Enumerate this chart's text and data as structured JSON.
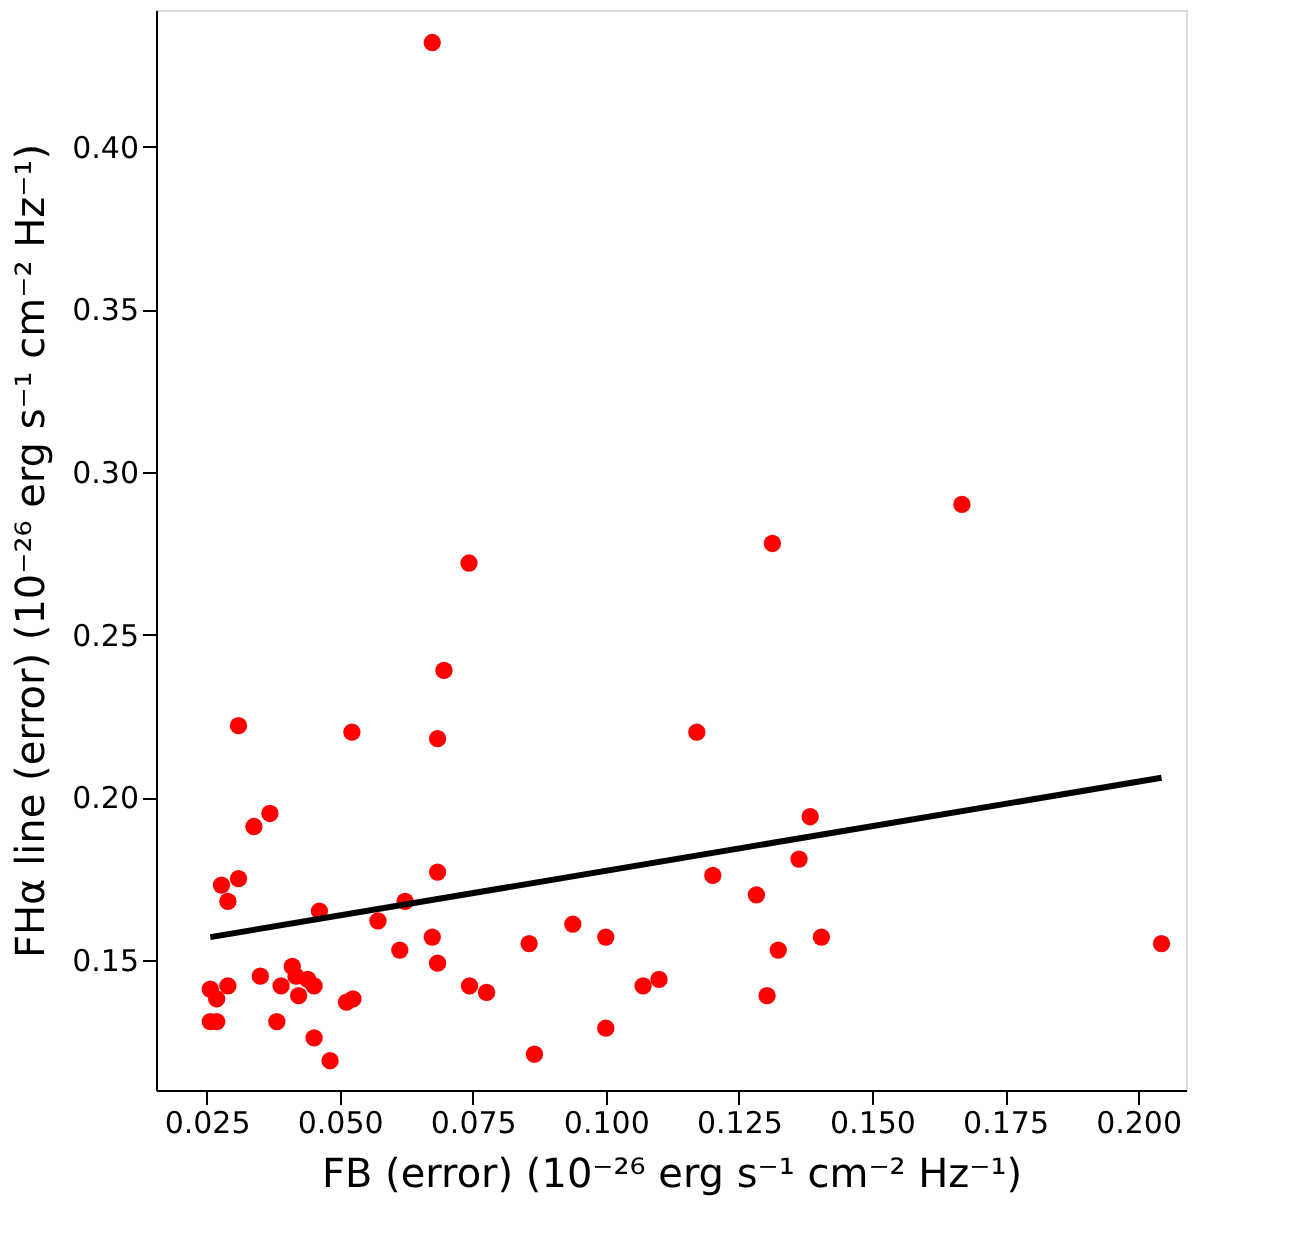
{
  "chart_data": {
    "type": "scatter",
    "xlabel": "FB (error) (10⁻²⁶ erg s⁻¹ cm⁻² Hz⁻¹)",
    "ylabel": "FHα line (error) (10⁻²⁶ erg s⁻¹ cm⁻² Hz⁻¹)",
    "xlim": [
      0.0155,
      0.209
    ],
    "ylim": [
      0.11,
      0.442
    ],
    "xticks": [
      {
        "value": 0.025,
        "label": "0.025"
      },
      {
        "value": 0.05,
        "label": "0.050"
      },
      {
        "value": 0.075,
        "label": "0.075"
      },
      {
        "value": 0.1,
        "label": "0.100"
      },
      {
        "value": 0.125,
        "label": "0.125"
      },
      {
        "value": 0.15,
        "label": "0.150"
      },
      {
        "value": 0.175,
        "label": "0.175"
      },
      {
        "value": 0.2,
        "label": "0.200"
      }
    ],
    "yticks": [
      0.15,
      {
        "value": 0.2,
        "label": "0.20"
      },
      0.25,
      {
        "value": 0.3,
        "label": "0.30"
      },
      0.35,
      {
        "value": 0.4,
        "label": "0.40"
      }
    ],
    "grid": false,
    "legend": false,
    "marker": "circle",
    "series": [
      {
        "color": "#ff0000",
        "x": [
          0.0674,
          0.0743,
          0.031,
          0.0523,
          0.0684,
          0.0696,
          0.0369,
          0.0339,
          0.0278,
          0.031,
          0.029,
          0.0462,
          0.0684,
          0.0623,
          0.0572,
          0.0674,
          0.0613,
          0.0684,
          0.0744,
          0.0776,
          0.0856,
          0.0938,
          0.1,
          0.107,
          0.11,
          0.1,
          0.0866,
          0.0257,
          0.0269,
          0.029,
          0.0257,
          0.0269,
          0.0351,
          0.0382,
          0.039,
          0.0411,
          0.0418,
          0.0423,
          0.044,
          0.0452,
          0.0452,
          0.0482,
          0.0513,
          0.0525,
          0.1669,
          0.1313,
          0.1171,
          0.1384,
          0.1363,
          0.1201,
          0.1283,
          0.1324,
          0.1405,
          0.2044,
          0.1303
        ],
        "values": [
          0.432,
          0.272,
          0.222,
          0.22,
          0.218,
          0.239,
          0.195,
          0.191,
          0.173,
          0.175,
          0.168,
          0.165,
          0.177,
          0.168,
          0.162,
          0.157,
          0.153,
          0.149,
          0.142,
          0.14,
          0.155,
          0.161,
          0.157,
          0.142,
          0.144,
          0.129,
          0.121,
          0.141,
          0.138,
          0.142,
          0.131,
          0.131,
          0.145,
          0.131,
          0.142,
          0.148,
          0.145,
          0.139,
          0.144,
          0.142,
          0.126,
          0.119,
          0.137,
          0.138,
          0.29,
          0.278,
          0.22,
          0.194,
          0.181,
          0.176,
          0.17,
          0.153,
          0.157,
          0.155,
          0.139
        ]
      },
      {
        "type": "line",
        "color": "#000000",
        "line_style": "solid",
        "marker": "none",
        "x": [
          0.0257,
          0.2044
        ],
        "values": [
          0.157,
          0.206
        ]
      }
    ]
  }
}
